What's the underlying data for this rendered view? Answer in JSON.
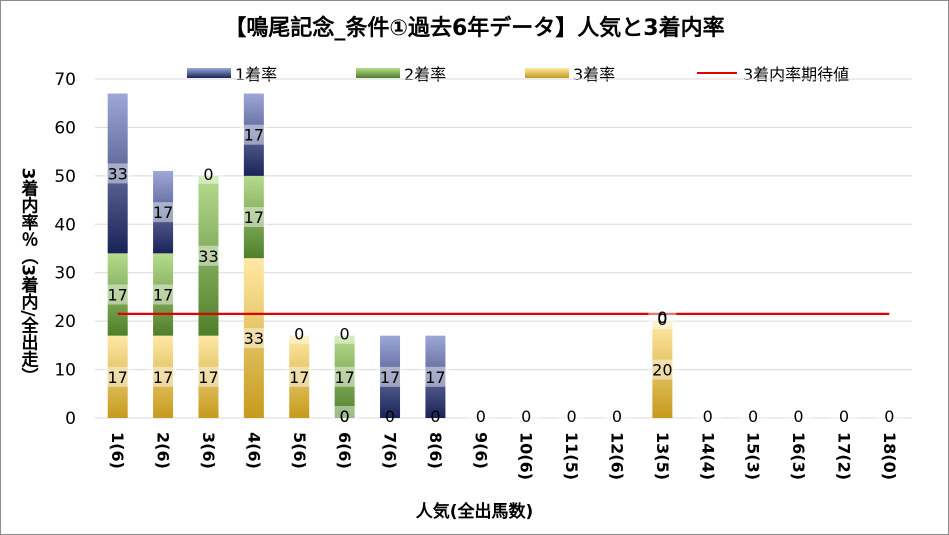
{
  "chart_data": {
    "type": "bar",
    "stacked": true,
    "title": "【鳴尾記念_条件①過去6年データ】人気と3着内率",
    "xlabel": "人気(全出馬数)",
    "ylabel": "3着内率％（3着内/全出走）",
    "ylim": [
      0,
      70
    ],
    "yticks": [
      0,
      10,
      20,
      30,
      40,
      50,
      60,
      70
    ],
    "grid": true,
    "legend_position": "top",
    "categories": [
      "1(6)",
      "2(6)",
      "3(6)",
      "4(6)",
      "5(6)",
      "6(6)",
      "7(6)",
      "8(6)",
      "9(6)",
      "10(6)",
      "11(5)",
      "12(6)",
      "13(5)",
      "14(4)",
      "15(3)",
      "16(3)",
      "17(2)",
      "18(0)"
    ],
    "series": [
      {
        "name": "3着率",
        "colors": [
          "#c69a1c",
          "#ffe9a6"
        ],
        "values": [
          17,
          17,
          17,
          33,
          17,
          0,
          0,
          0,
          0,
          0,
          0,
          0,
          20,
          0,
          0,
          0,
          0,
          0
        ],
        "labels": [
          "17",
          "17",
          "17",
          "33",
          "17",
          "0",
          "",
          "",
          "",
          "",
          "",
          "",
          "20",
          "",
          "",
          "",
          "",
          ""
        ]
      },
      {
        "name": "2着率",
        "colors": [
          "#4f7f2a",
          "#b6dc8e"
        ],
        "values": [
          17,
          17,
          33,
          17,
          0,
          17,
          0,
          0,
          0,
          0,
          0,
          0,
          0,
          0,
          0,
          0,
          0,
          0
        ],
        "labels": [
          "17",
          "17",
          "33",
          "17",
          "",
          "17",
          "",
          "",
          "",
          "",
          "",
          "",
          "",
          "",
          "",
          "",
          "",
          ""
        ]
      },
      {
        "name": "1着率",
        "colors": [
          "#1a2357",
          "#9ea8d8"
        ],
        "values": [
          33,
          17,
          0,
          17,
          0,
          0,
          17,
          17,
          0,
          0,
          0,
          0,
          0,
          0,
          0,
          0,
          0,
          0
        ],
        "labels": [
          "33",
          "17",
          "0",
          "17",
          "0",
          "0",
          "17",
          "17",
          "0",
          "0",
          "0",
          "0",
          "0",
          "0",
          "0",
          "0",
          "0",
          "0"
        ]
      }
    ],
    "stray_labels": [
      {
        "category": "6(6)",
        "text": "0"
      },
      {
        "category": "7(6)",
        "text": "0"
      },
      {
        "category": "8(6)",
        "text": "0"
      },
      {
        "category": "13(5)",
        "text": "0"
      }
    ],
    "reference_line": {
      "name": "3着内率期待値",
      "value": 21.5,
      "color": "#e00000"
    }
  },
  "legend": [
    {
      "label": "1着率"
    },
    {
      "label": "2着率"
    },
    {
      "label": "3着率"
    },
    {
      "label": "3着内率期待値"
    }
  ]
}
